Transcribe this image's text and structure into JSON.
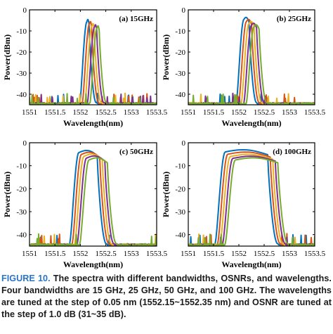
{
  "chart_data": [
    {
      "type": "line",
      "title": "(a) 15GHz",
      "xlabel": "Wavelength(nm)",
      "ylabel": "Power(dBm)",
      "xlim": [
        1551,
        1553.5
      ],
      "ylim": [
        -45,
        0
      ],
      "xticks": [
        1551,
        1551.5,
        1552,
        1552.5,
        1553,
        1553.5
      ],
      "xtick_labels": [
        "1551",
        "1551.5",
        "1552",
        "1552.5",
        "1553",
        "1553.5"
      ],
      "yticks": [
        0,
        -10,
        -20,
        -30,
        -40
      ],
      "ytick_labels": [
        "0",
        "-10",
        "-20",
        "-30",
        "-40"
      ],
      "series": [
        {
          "color": "#0072BD",
          "center": 1552.15,
          "peak": -4.0
        },
        {
          "color": "#D95319",
          "center": 1552.2,
          "peak": -5.0
        },
        {
          "color": "#EDB120",
          "center": 1552.25,
          "peak": -6.0
        },
        {
          "color": "#7E2F8E",
          "center": 1552.3,
          "peak": -6.5
        },
        {
          "color": "#77AC30",
          "center": 1552.35,
          "peak": -7.0
        }
      ],
      "half_width_top": 0.02,
      "half_width_bottom": 0.16,
      "noise_floor": -44
    },
    {
      "type": "line",
      "title": "(b) 25GHz",
      "xlabel": "Wavelength(nm)",
      "ylabel": "Power(dBm)",
      "xlim": [
        1551,
        1553.5
      ],
      "ylim": [
        -45,
        0
      ],
      "xticks": [
        1551,
        1551.5,
        1552,
        1552.5,
        1553,
        1553.5
      ],
      "xtick_labels": [
        "1551",
        "1551.5",
        "1552",
        "1552.5",
        "1553",
        "1553.5"
      ],
      "yticks": [
        0,
        -10,
        -20,
        -30,
        -40
      ],
      "ytick_labels": [
        "0",
        "-10",
        "-20",
        "-30",
        "-40"
      ],
      "series": [
        {
          "color": "#0072BD",
          "center": 1552.15,
          "peak": -3.0
        },
        {
          "color": "#D95319",
          "center": 1552.2,
          "peak": -4.0
        },
        {
          "color": "#EDB120",
          "center": 1552.25,
          "peak": -5.0
        },
        {
          "color": "#7E2F8E",
          "center": 1552.3,
          "peak": -5.8
        },
        {
          "color": "#77AC30",
          "center": 1552.35,
          "peak": -6.5
        }
      ],
      "half_width_top": 0.05,
      "half_width_bottom": 0.2,
      "noise_floor": -44
    },
    {
      "type": "line",
      "title": "(c) 50GHz",
      "xlabel": "Wavelength(nm)",
      "ylabel": "Power(dBm)",
      "xlim": [
        1551,
        1553.5
      ],
      "ylim": [
        -45,
        0
      ],
      "xticks": [
        1551,
        1551.5,
        1552,
        1552.5,
        1553,
        1553.5
      ],
      "xtick_labels": [
        "1551",
        "1551.5",
        "1552",
        "1552.5",
        "1553",
        "1553.5"
      ],
      "yticks": [
        0,
        -10,
        -20,
        -30,
        -40
      ],
      "ytick_labels": [
        "0",
        "-10",
        "-20",
        "-30",
        "-40"
      ],
      "series": [
        {
          "color": "#0072BD",
          "center": 1552.15,
          "peak": -2.8
        },
        {
          "color": "#D95319",
          "center": 1552.2,
          "peak": -3.6
        },
        {
          "color": "#EDB120",
          "center": 1552.25,
          "peak": -4.4
        },
        {
          "color": "#7E2F8E",
          "center": 1552.3,
          "peak": -5.2
        },
        {
          "color": "#77AC30",
          "center": 1552.35,
          "peak": -6.0
        }
      ],
      "half_width_top": 0.18,
      "half_width_bottom": 0.36,
      "noise_floor": -44
    },
    {
      "type": "line",
      "title": "(d) 100GHz",
      "xlabel": "Wavelength(nm)",
      "ylabel": "Power(dBm)",
      "xlim": [
        1551,
        1553.5
      ],
      "ylim": [
        -45,
        0
      ],
      "xticks": [
        1551,
        1551.5,
        1552,
        1552.5,
        1553,
        1553.5
      ],
      "xtick_labels": [
        "1551",
        "1551.5",
        "1552",
        "1552.5",
        "1553",
        "1553.5"
      ],
      "yticks": [
        0,
        -10,
        -20,
        -30,
        -40
      ],
      "ytick_labels": [
        "0",
        "-10",
        "-20",
        "-30",
        "-40"
      ],
      "series": [
        {
          "color": "#0072BD",
          "center": 1552.15,
          "peak": -2.5
        },
        {
          "color": "#D95319",
          "center": 1552.2,
          "peak": -3.5
        },
        {
          "color": "#EDB120",
          "center": 1552.25,
          "peak": -4.5
        },
        {
          "color": "#7E2F8E",
          "center": 1552.3,
          "peak": -5.3
        },
        {
          "color": "#77AC30",
          "center": 1552.35,
          "peak": -6.0
        }
      ],
      "half_width_top": 0.42,
      "half_width_bottom": 0.62,
      "noise_floor": -44
    }
  ],
  "caption": {
    "label": "FIGURE 10.",
    "text": "The spectra with different bandwidths, OSNRs, and wavelengths. Four bandwidths are 15 GHz, 25 GHz, 50 GHz, and 100 GHz. The wavelengths are tuned at the step of 0.05 nm (1552.15~1552.35 nm) and OSNR are tuned at the step of 1.0 dB (31~35 dB)."
  }
}
